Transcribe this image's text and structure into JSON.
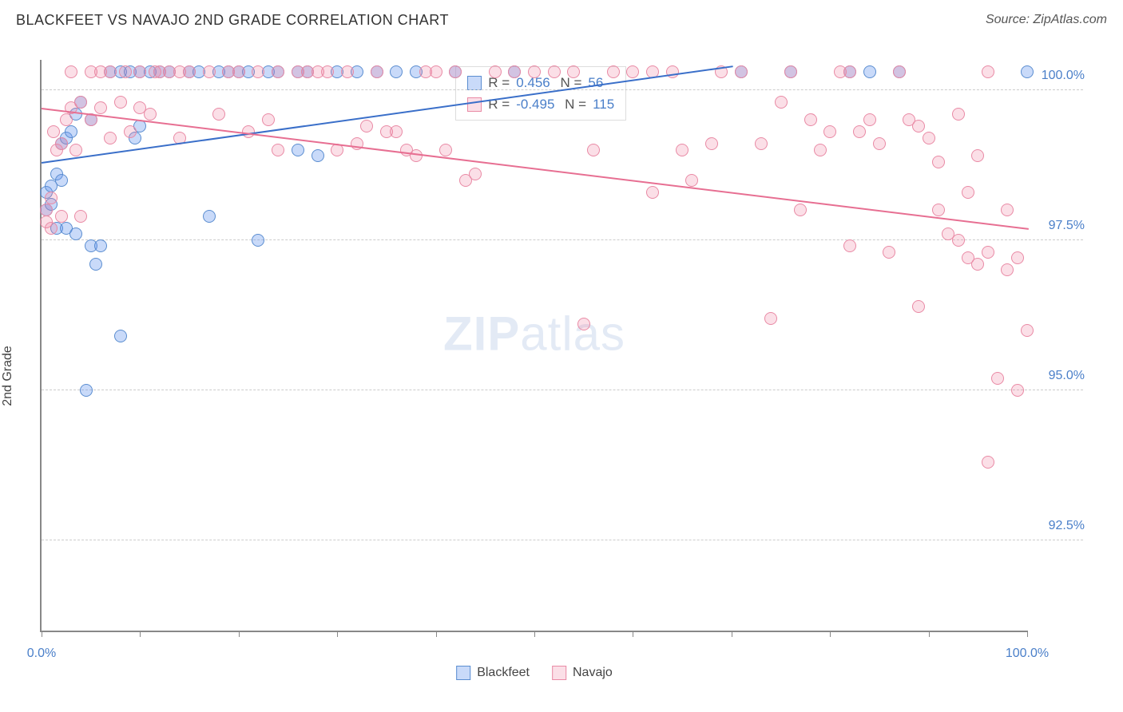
{
  "header": {
    "title": "BLACKFEET VS NAVAJO 2ND GRADE CORRELATION CHART",
    "source": "Source: ZipAtlas.com"
  },
  "chart": {
    "type": "scatter",
    "y_axis_label": "2nd Grade",
    "x_range": [
      0,
      100
    ],
    "y_range": [
      91.0,
      100.5
    ],
    "y_ticks": [
      92.5,
      95.0,
      97.5,
      100.0
    ],
    "y_tick_labels": [
      "92.5%",
      "95.0%",
      "97.5%",
      "100.0%"
    ],
    "x_ticks": [
      0,
      10,
      20,
      30,
      40,
      50,
      60,
      70,
      80,
      90,
      100
    ],
    "x_tick_labels": {
      "0": "0.0%",
      "100": "100.0%"
    },
    "background_color": "#ffffff",
    "grid_color": "#cccccc",
    "axis_color": "#888888",
    "marker_radius": 8,
    "watermark": "ZIPatlas",
    "series": [
      {
        "key": "blackfeet",
        "label": "Blackfeet",
        "color_fill": "rgba(100,149,237,0.35)",
        "color_stroke": "#5a8dd0",
        "trend_color": "#3a6fc9",
        "R": "0.456",
        "N": "56",
        "trend": {
          "x1": 0,
          "y1": 98.8,
          "x2": 70,
          "y2": 100.4
        },
        "points": [
          [
            0.5,
            98.3
          ],
          [
            0.5,
            98.0
          ],
          [
            1,
            98.1
          ],
          [
            1,
            98.4
          ],
          [
            1.5,
            98.6
          ],
          [
            1.5,
            97.7
          ],
          [
            2,
            99.1
          ],
          [
            2,
            98.5
          ],
          [
            2.5,
            99.2
          ],
          [
            2.5,
            97.7
          ],
          [
            3,
            99.3
          ],
          [
            3.5,
            99.6
          ],
          [
            3.5,
            97.6
          ],
          [
            4,
            99.8
          ],
          [
            4.5,
            95.0
          ],
          [
            5,
            99.5
          ],
          [
            5,
            97.4
          ],
          [
            5.5,
            97.1
          ],
          [
            6,
            97.4
          ],
          [
            7,
            100.3
          ],
          [
            8,
            100.3
          ],
          [
            8,
            95.9
          ],
          [
            9,
            100.3
          ],
          [
            9.5,
            99.2
          ],
          [
            10,
            100.3
          ],
          [
            10,
            99.4
          ],
          [
            11,
            100.3
          ],
          [
            12,
            100.3
          ],
          [
            13,
            100.3
          ],
          [
            15,
            100.3
          ],
          [
            16,
            100.3
          ],
          [
            17,
            97.9
          ],
          [
            18,
            100.3
          ],
          [
            19,
            100.3
          ],
          [
            20,
            100.3
          ],
          [
            21,
            100.3
          ],
          [
            22,
            97.5
          ],
          [
            23,
            100.3
          ],
          [
            24,
            100.3
          ],
          [
            26,
            99.0
          ],
          [
            26,
            100.3
          ],
          [
            27,
            100.3
          ],
          [
            28,
            98.9
          ],
          [
            30,
            100.3
          ],
          [
            32,
            100.3
          ],
          [
            34,
            100.3
          ],
          [
            36,
            100.3
          ],
          [
            38,
            100.3
          ],
          [
            42,
            100.3
          ],
          [
            48,
            100.3
          ],
          [
            71,
            100.3
          ],
          [
            76,
            100.3
          ],
          [
            82,
            100.3
          ],
          [
            84,
            100.3
          ],
          [
            87,
            100.3
          ],
          [
            100,
            100.3
          ]
        ]
      },
      {
        "key": "navajo",
        "label": "Navajo",
        "color_fill": "rgba(240,128,160,0.25)",
        "color_stroke": "#e98aa5",
        "trend_color": "#e76f92",
        "R": "-0.495",
        "N": "115",
        "trend": {
          "x1": 0,
          "y1": 99.7,
          "x2": 100,
          "y2": 97.7
        },
        "points": [
          [
            0.5,
            98.0
          ],
          [
            0.5,
            97.8
          ],
          [
            1,
            98.2
          ],
          [
            1,
            97.7
          ],
          [
            1.2,
            99.3
          ],
          [
            1.5,
            99.0
          ],
          [
            2,
            99.1
          ],
          [
            2,
            97.9
          ],
          [
            2.5,
            99.5
          ],
          [
            3,
            99.7
          ],
          [
            3,
            100.3
          ],
          [
            3.5,
            99.0
          ],
          [
            4,
            99.8
          ],
          [
            4,
            97.9
          ],
          [
            5,
            99.5
          ],
          [
            5,
            100.3
          ],
          [
            6,
            100.3
          ],
          [
            6,
            99.7
          ],
          [
            7,
            100.3
          ],
          [
            7,
            99.2
          ],
          [
            8,
            99.8
          ],
          [
            8.5,
            100.3
          ],
          [
            9,
            99.3
          ],
          [
            10,
            99.7
          ],
          [
            10,
            100.3
          ],
          [
            11,
            99.6
          ],
          [
            11.5,
            100.3
          ],
          [
            12,
            100.3
          ],
          [
            13,
            100.3
          ],
          [
            14,
            99.2
          ],
          [
            14,
            100.3
          ],
          [
            15,
            100.3
          ],
          [
            17,
            100.3
          ],
          [
            18,
            99.6
          ],
          [
            19,
            100.3
          ],
          [
            20,
            100.3
          ],
          [
            21,
            99.3
          ],
          [
            22,
            100.3
          ],
          [
            23,
            99.5
          ],
          [
            24,
            100.3
          ],
          [
            24,
            99.0
          ],
          [
            26,
            100.3
          ],
          [
            27,
            100.3
          ],
          [
            28,
            100.3
          ],
          [
            29,
            100.3
          ],
          [
            30,
            99.0
          ],
          [
            31,
            100.3
          ],
          [
            32,
            99.1
          ],
          [
            33,
            99.4
          ],
          [
            34,
            100.3
          ],
          [
            35,
            99.3
          ],
          [
            36,
            99.3
          ],
          [
            37,
            99.0
          ],
          [
            38,
            98.9
          ],
          [
            39,
            100.3
          ],
          [
            40,
            100.3
          ],
          [
            41,
            99.0
          ],
          [
            42,
            100.3
          ],
          [
            43,
            98.5
          ],
          [
            44,
            98.6
          ],
          [
            46,
            100.3
          ],
          [
            48,
            100.3
          ],
          [
            50,
            100.3
          ],
          [
            52,
            100.3
          ],
          [
            54,
            100.3
          ],
          [
            55,
            96.1
          ],
          [
            56,
            99.0
          ],
          [
            58,
            100.3
          ],
          [
            60,
            100.3
          ],
          [
            62,
            100.3
          ],
          [
            62,
            98.3
          ],
          [
            64,
            100.3
          ],
          [
            65,
            99.0
          ],
          [
            66,
            98.5
          ],
          [
            68,
            99.1
          ],
          [
            69,
            100.3
          ],
          [
            71,
            100.3
          ],
          [
            73,
            99.1
          ],
          [
            74,
            96.2
          ],
          [
            75,
            99.8
          ],
          [
            76,
            100.3
          ],
          [
            77,
            98.0
          ],
          [
            78,
            99.5
          ],
          [
            79,
            99.0
          ],
          [
            80,
            99.3
          ],
          [
            81,
            100.3
          ],
          [
            82,
            100.3
          ],
          [
            82,
            97.4
          ],
          [
            83,
            99.3
          ],
          [
            84,
            99.5
          ],
          [
            85,
            99.1
          ],
          [
            86,
            97.3
          ],
          [
            87,
            100.3
          ],
          [
            88,
            99.5
          ],
          [
            89,
            99.4
          ],
          [
            89,
            96.4
          ],
          [
            90,
            99.2
          ],
          [
            91,
            98.0
          ],
          [
            91,
            98.8
          ],
          [
            92,
            97.6
          ],
          [
            93,
            97.5
          ],
          [
            93,
            99.6
          ],
          [
            94,
            98.3
          ],
          [
            94,
            97.2
          ],
          [
            95,
            98.9
          ],
          [
            95,
            97.1
          ],
          [
            96,
            100.3
          ],
          [
            96,
            97.3
          ],
          [
            96,
            93.8
          ],
          [
            97,
            95.2
          ],
          [
            98,
            98.0
          ],
          [
            98,
            97.0
          ],
          [
            99,
            97.2
          ],
          [
            99,
            95.0
          ],
          [
            100,
            96.0
          ]
        ]
      }
    ],
    "legend": {
      "items": [
        {
          "label": "Blackfeet",
          "swatch": "blue"
        },
        {
          "label": "Navajo",
          "swatch": "pink"
        }
      ]
    }
  }
}
